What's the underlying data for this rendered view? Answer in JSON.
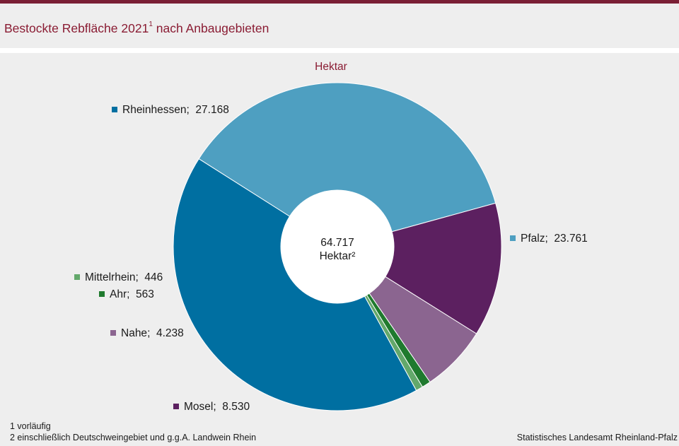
{
  "header": {
    "title": "Bestockte Rebfläche 2021",
    "title_sup": "1",
    "title_rest": " nach Anbaugebieten"
  },
  "chart_data": {
    "type": "pie",
    "donut": true,
    "unit_label": "Hektar",
    "total_value": "64.717",
    "total_label": "Hektar²",
    "slices": [
      {
        "name": "Pfalz",
        "value": 23761,
        "value_label": "23.761",
        "color": "#4e9fc1"
      },
      {
        "name": "Mosel",
        "value": 8530,
        "value_label": "8.530",
        "color": "#5c2060"
      },
      {
        "name": "Nahe",
        "value": 4238,
        "value_label": "4.238",
        "color": "#8b6590"
      },
      {
        "name": "Ahr",
        "value": 563,
        "value_label": "563",
        "color": "#1f7a2e"
      },
      {
        "name": "Mittelrhein",
        "value": 446,
        "value_label": "446",
        "color": "#63a86b"
      },
      {
        "name": "Rheinhessen",
        "value": 27168,
        "value_label": "27.168",
        "color": "#006fa1"
      }
    ]
  },
  "footnotes": {
    "note1": "1 vorläufig",
    "note2": "2 einschließlich Deutschweingebiet  und g.g.A. Landwein  Rhein",
    "source": "Statistisches Landesamt  Rheinland-Pfalz"
  }
}
